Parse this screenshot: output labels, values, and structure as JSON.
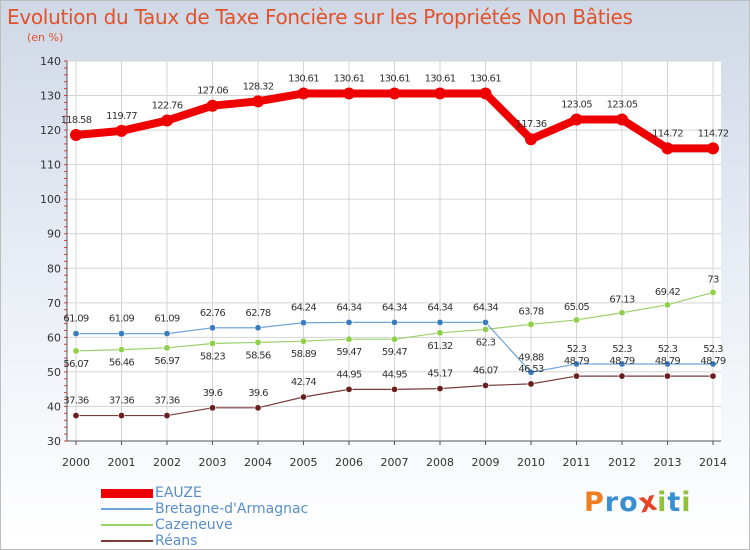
{
  "title": "Evolution du Taux de Taxe Foncière sur les Propriétés Non Bâties",
  "subtitle": "(en %)",
  "brand": {
    "text": "Proxiti",
    "letters": [
      "P",
      "r",
      "o",
      "x",
      "i",
      "t",
      "i"
    ],
    "colors": [
      "#f07c1e",
      "#3a8fd1",
      "#3a8fd1",
      "#e54522",
      "#8fc23a",
      "#3a8fd1",
      "#8fc23a"
    ]
  },
  "chart_data": {
    "type": "line",
    "title": "Evolution du Taux de Taxe Foncière sur les Propriétés Non Bâties",
    "ylabel": "(en %)",
    "xlabel": "",
    "ylim": [
      30,
      140
    ],
    "yticks": [
      30,
      40,
      50,
      60,
      70,
      80,
      90,
      100,
      110,
      120,
      130,
      140
    ],
    "x": [
      "2000",
      "2001",
      "2002",
      "2003",
      "2004",
      "2005",
      "2006",
      "2007",
      "2008",
      "2009",
      "2010",
      "2011",
      "2012",
      "2013",
      "2014"
    ],
    "grid": true,
    "legend_position": "bottom-left",
    "series": [
      {
        "name": "EAUZE",
        "color": "#ee0000",
        "values": [
          118.58,
          119.77,
          122.76,
          127.06,
          128.32,
          130.61,
          130.61,
          130.61,
          130.61,
          130.61,
          117.36,
          123.05,
          123.05,
          114.72,
          114.72
        ],
        "labels": [
          "118.58",
          "119.77",
          "122.76",
          "127.06",
          "128.32",
          "130.61",
          "130.61",
          "130.61",
          "130.61",
          "130.61",
          "117.36",
          "123.05",
          "123.05",
          "114.72",
          "114.72"
        ]
      },
      {
        "name": "Bretagne-d'Armagnac",
        "color": "#6fa3d6",
        "values": [
          61.09,
          61.09,
          61.09,
          62.76,
          62.78,
          64.24,
          64.34,
          64.34,
          64.34,
          64.34,
          49.88,
          52.3,
          52.3,
          52.3,
          52.3
        ],
        "labels": [
          "61.09",
          "61.09",
          "61.09",
          "62.76",
          "62.78",
          "64.24",
          "64.34",
          "64.34",
          "64.34",
          "64.34",
          "49.88",
          "52.3",
          "52.3",
          "52.3",
          "52.3"
        ]
      },
      {
        "name": "Cazeneuve",
        "color": "#9ad06a",
        "values": [
          56.07,
          56.46,
          56.97,
          58.23,
          58.56,
          58.89,
          59.47,
          59.47,
          61.32,
          62.3,
          63.78,
          65.05,
          67.13,
          69.42,
          73
        ],
        "labels": [
          "56.07",
          "56.46",
          "56.97",
          "58.23",
          "58.56",
          "58.89",
          "59.47",
          "59.47",
          "61.32",
          "62.3",
          "63.78",
          "65.05",
          "67.13",
          "69.42",
          "73"
        ]
      },
      {
        "name": "Réans",
        "color": "#7a3b3b",
        "values": [
          37.36,
          37.36,
          37.36,
          39.6,
          39.6,
          42.74,
          44.95,
          44.95,
          45.17,
          46.07,
          46.53,
          48.79,
          48.79,
          48.79,
          48.79
        ],
        "labels": [
          "37.36",
          "37.36",
          "37.36",
          "39.6",
          "39.6",
          "42.74",
          "44.95",
          "44.95",
          "45.17",
          "46.07",
          "46.53",
          "48.79",
          "48.79",
          "48.79",
          "48.79"
        ]
      }
    ]
  }
}
